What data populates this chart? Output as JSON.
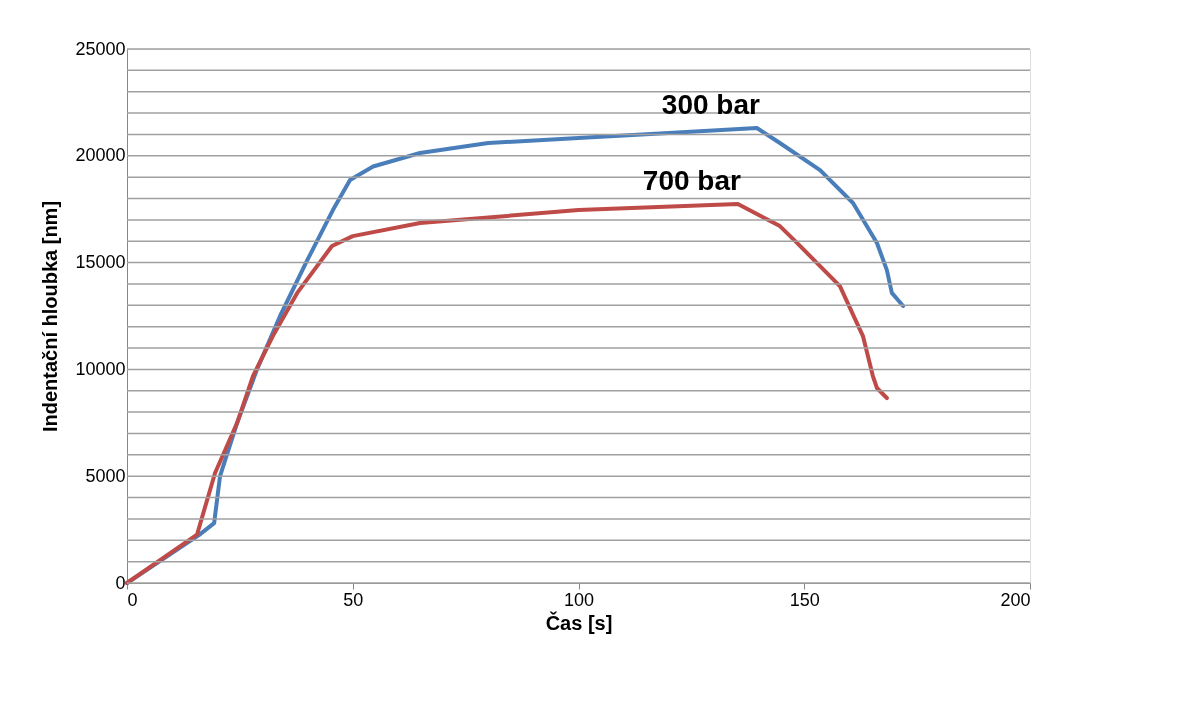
{
  "chart_data": {
    "type": "line",
    "xlabel": "Čas [s]",
    "ylabel": "Indentační hloubka [nm]",
    "xlim": [
      0,
      200
    ],
    "xticks": [
      0,
      50,
      100,
      150,
      200
    ],
    "ylim": [
      0,
      25000
    ],
    "yticks": [
      0,
      {
        "value": 1000,
        "label": null
      },
      {
        "value": 2000,
        "label": null
      },
      {
        "value": 3000,
        "label": null
      },
      {
        "value": 4000,
        "label": null
      },
      5000,
      {
        "value": 6000,
        "label": null
      },
      {
        "value": 7000,
        "label": null
      },
      {
        "value": 8000,
        "label": null
      },
      {
        "value": 9000,
        "label": null
      },
      10000,
      {
        "value": 11000,
        "label": null
      },
      {
        "value": 12000,
        "label": null
      },
      {
        "value": 13000,
        "label": null
      },
      {
        "value": 14000,
        "label": null
      },
      15000,
      {
        "value": 16000,
        "label": null
      },
      {
        "value": 17000,
        "label": null
      },
      {
        "value": 18000,
        "label": null
      },
      {
        "value": 19000,
        "label": null
      },
      20000,
      {
        "value": 21000,
        "label": null
      },
      {
        "value": 22000,
        "label": null
      },
      {
        "value": 23000,
        "label": null
      },
      {
        "value": 24000,
        "label": null
      },
      25000
    ],
    "grid": "y",
    "legend": false,
    "marker": "none",
    "line_style": "solid",
    "series": [
      {
        "name": "300 bar",
        "color": "#4a7ebb",
        "x": [
          0,
          16,
          19.3,
          20.6,
          24.4,
          28.8,
          33.9,
          39.9,
          45.6,
          49.4,
          54.5,
          64.9,
          80,
          100,
          120,
          139.5,
          144.6,
          153.5,
          160.8,
          166.1,
          168.3,
          169.4,
          171.9
        ],
        "values": [
          0,
          2250,
          2800,
          5000,
          7500,
          10000,
          12500,
          15100,
          17460,
          18870,
          19500,
          20130,
          20600,
          20830,
          21070,
          21300,
          20600,
          19330,
          17790,
          15920,
          14650,
          13580,
          12970
        ]
      },
      {
        "name": "700 bar",
        "color": "#be4b48",
        "x": [
          0,
          15.5,
          19.5,
          24.4,
          27.9,
          32.3,
          37.7,
          45.4,
          50,
          64.9,
          100,
          135.3,
          144.6,
          148.4,
          157.9,
          163,
          165.2,
          166.1,
          168.3
        ],
        "values": [
          0,
          2260,
          5150,
          7500,
          9690,
          11560,
          13580,
          15780,
          16240,
          16850,
          17460,
          17740,
          16710,
          15920,
          13900,
          11560,
          9690,
          9130,
          8660
        ]
      }
    ]
  }
}
